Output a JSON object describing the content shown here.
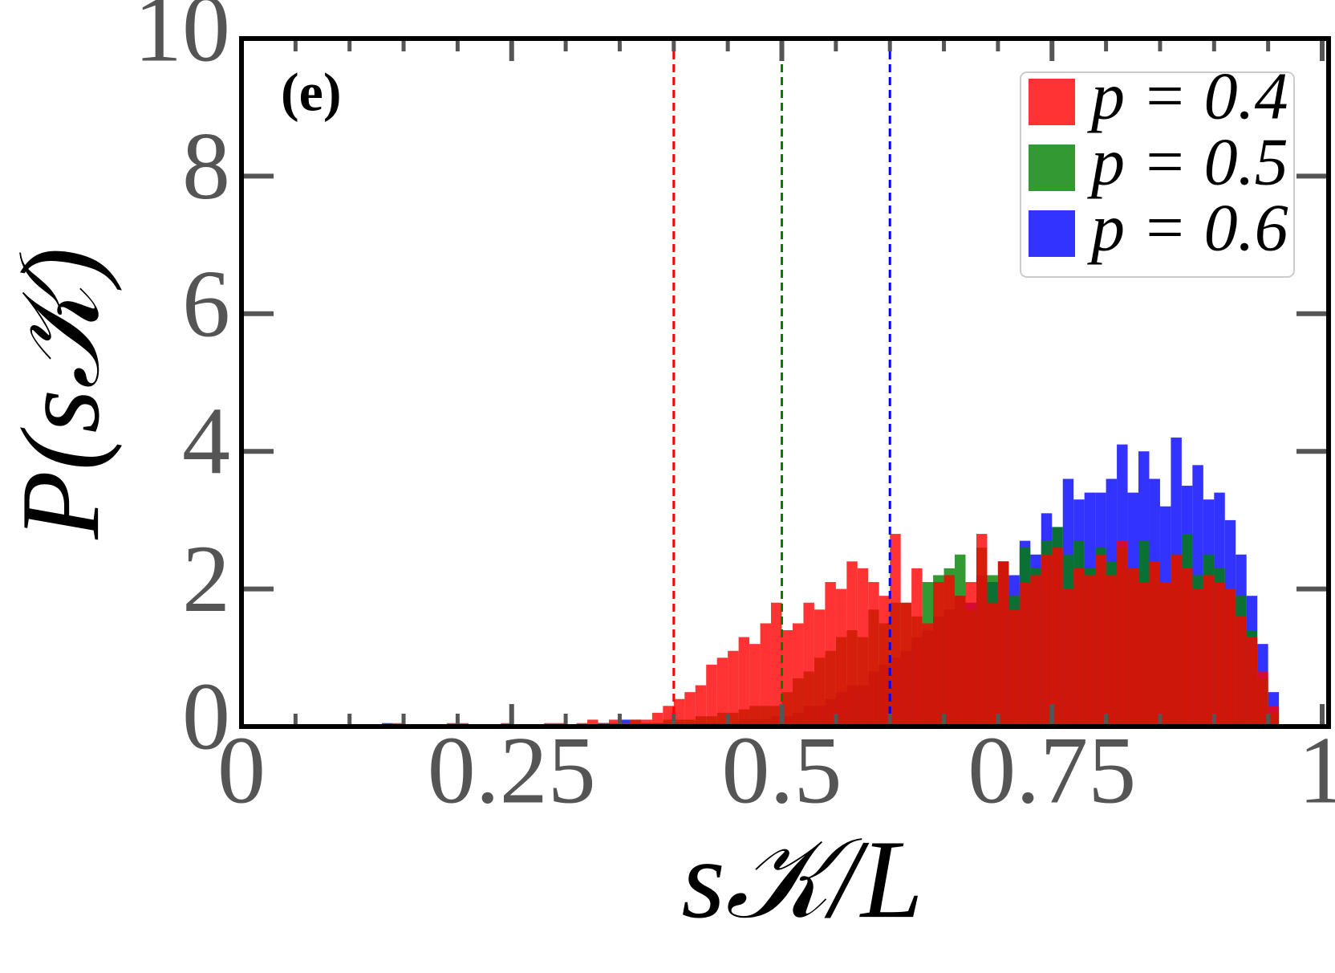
{
  "chart_data": {
    "type": "histogram",
    "panel_label": "(e)",
    "x_label": "s𝒦/L",
    "y_label": "P(s𝒦)",
    "bins": [
      0.1,
      0.11,
      0.12,
      0.13,
      0.14,
      0.15,
      0.16,
      0.17,
      0.18,
      0.19,
      0.2,
      0.21,
      0.22,
      0.23,
      0.24,
      0.25,
      0.26,
      0.27,
      0.28,
      0.29,
      0.3,
      0.31,
      0.32,
      0.33,
      0.34,
      0.35,
      0.36,
      0.37,
      0.38,
      0.39,
      0.4,
      0.41,
      0.42,
      0.43,
      0.44,
      0.45,
      0.46,
      0.47,
      0.48,
      0.49,
      0.5,
      0.51,
      0.52,
      0.53,
      0.54,
      0.55,
      0.56,
      0.57,
      0.58,
      0.59,
      0.6,
      0.61,
      0.62,
      0.63,
      0.64,
      0.65,
      0.66,
      0.67,
      0.68,
      0.69,
      0.7,
      0.71,
      0.72,
      0.73,
      0.74,
      0.75,
      0.76,
      0.77,
      0.78,
      0.79,
      0.8,
      0.81,
      0.82,
      0.83,
      0.84,
      0.85,
      0.86,
      0.87,
      0.88,
      0.89,
      0.9,
      0.91,
      0.92,
      0.93,
      0.94,
      0.95,
      0.96
    ],
    "series": [
      {
        "name": "p = 0.6",
        "color": "#0000ff",
        "mean": 0.6,
        "values": [
          0,
          0,
          0,
          0.05,
          0,
          0,
          0,
          0,
          0,
          0,
          0,
          0,
          0,
          0,
          0,
          0,
          0,
          0,
          0,
          0,
          0,
          0,
          0,
          0.05,
          0,
          0.1,
          0.05,
          0.05,
          0.05,
          0.05,
          0.05,
          0.05,
          0.05,
          0.05,
          0.05,
          0.05,
          0.1,
          0.1,
          0.1,
          0.15,
          0.15,
          0.2,
          0.3,
          0.3,
          0.4,
          0.5,
          0.6,
          0.6,
          0.8,
          0.9,
          1.0,
          1.1,
          1.3,
          1.4,
          1.6,
          1.7,
          1.9,
          1.8,
          2.2,
          2.1,
          2.4,
          2.2,
          2.7,
          2.5,
          3.1,
          2.9,
          3.6,
          3.3,
          3.4,
          3.4,
          3.6,
          4.1,
          3.4,
          4.0,
          3.6,
          3.2,
          4.2,
          3.5,
          3.8,
          3.3,
          3.4,
          3.0,
          2.5,
          1.9,
          1.2,
          0.5
        ]
      },
      {
        "name": "p = 0.5",
        "color": "#008000",
        "mean": 0.5,
        "values": [
          0,
          0,
          0,
          0,
          0,
          0,
          0,
          0,
          0,
          0,
          0,
          0,
          0,
          0,
          0,
          0.02,
          0,
          0,
          0,
          0,
          0,
          0,
          0,
          0.05,
          0.05,
          0.05,
          0.1,
          0.05,
          0.05,
          0.1,
          0.1,
          0.1,
          0.15,
          0.15,
          0.2,
          0.2,
          0.25,
          0.3,
          0.3,
          0.3,
          0.5,
          0.7,
          0.8,
          1.0,
          1.1,
          1.3,
          1.4,
          1.3,
          1.7,
          1.5,
          1.8,
          1.8,
          1.6,
          2.1,
          2.2,
          2.3,
          2.5,
          1.7,
          2.6,
          2.2,
          2.4,
          1.9,
          2.6,
          2.3,
          2.7,
          2.9,
          2.5,
          2.7,
          2.3,
          2.6,
          2.4,
          2.6,
          2.3,
          2.7,
          2.4,
          2.1,
          2.5,
          2.8,
          2.2,
          2.5,
          2.3,
          2.0,
          1.9,
          1.4,
          0.7,
          0.2
        ]
      },
      {
        "name": "p = 0.4",
        "color": "#ff0000",
        "mean": 0.4,
        "values": [
          0,
          0,
          0,
          0,
          0.05,
          0,
          0,
          0,
          0,
          0.05,
          0.05,
          0,
          0,
          0,
          0.05,
          0,
          0,
          0,
          0.05,
          0.05,
          0,
          0.05,
          0.1,
          0.05,
          0.1,
          0.05,
          0.1,
          0.1,
          0.2,
          0.3,
          0.4,
          0.5,
          0.6,
          0.9,
          1.0,
          1.1,
          1.3,
          1.2,
          1.5,
          1.8,
          1.4,
          1.5,
          1.8,
          1.7,
          2.1,
          2.0,
          2.4,
          2.3,
          2.1,
          1.9,
          2.8,
          1.8,
          2.3,
          1.5,
          2.1,
          2.2,
          1.9,
          2.1,
          2.8,
          1.8,
          2.4,
          1.7,
          2.1,
          2.2,
          2.5,
          2.6,
          2.0,
          2.3,
          2.2,
          2.5,
          2.2,
          2.7,
          2.3,
          2.1,
          2.4,
          2.1,
          2.5,
          2.3,
          2.0,
          2.2,
          2.1,
          2.0,
          1.6,
          1.3,
          0.8,
          0.3
        ]
      }
    ],
    "legend_order": [
      2,
      1,
      0
    ],
    "legend": "upper right",
    "xlim": [
      0,
      1
    ],
    "ylim": [
      0,
      10
    ],
    "xticks": [
      0,
      0.25,
      0.5,
      0.75,
      1
    ],
    "xminorticks": [
      0.05,
      0.1,
      0.15,
      0.2,
      0.3,
      0.35,
      0.4,
      0.45,
      0.55,
      0.6,
      0.65,
      0.7,
      0.8,
      0.85,
      0.9,
      0.95
    ],
    "yticks": [
      0,
      2,
      4,
      6,
      8,
      10
    ]
  }
}
